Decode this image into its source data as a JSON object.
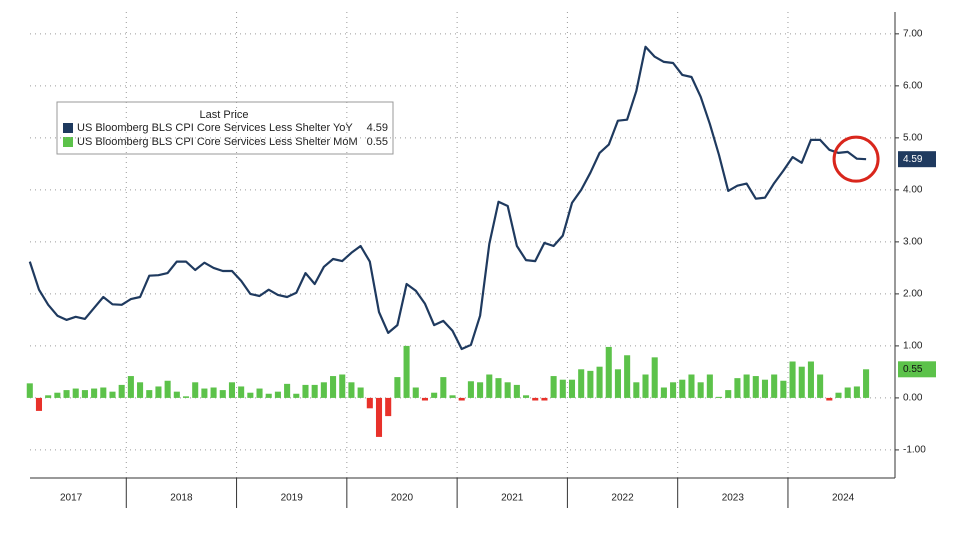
{
  "chart_data": {
    "type": "combo",
    "legend_title": "Last Price",
    "legend_position": "upper left",
    "categories": [
      null,
      null,
      null,
      null,
      null,
      null,
      "2017",
      null,
      null,
      null,
      null,
      null,
      null,
      null,
      null,
      null,
      null,
      null,
      "2018",
      null,
      null,
      null,
      null,
      null,
      null,
      null,
      null,
      null,
      null,
      null,
      "2019",
      null,
      null,
      null,
      null,
      null,
      null,
      null,
      null,
      null,
      null,
      null,
      "2020",
      null,
      null,
      null,
      null,
      null,
      null,
      null,
      null,
      null,
      null,
      null,
      "2021",
      null,
      null,
      null,
      null,
      null,
      null,
      null,
      null,
      null,
      null,
      null,
      "2022",
      null,
      null,
      null,
      null,
      null,
      null,
      null,
      null,
      null,
      null,
      null,
      "2023",
      null,
      null,
      null,
      null,
      null,
      null,
      null,
      null,
      null,
      null,
      null,
      "2024",
      null,
      null,
      null,
      null,
      null
    ],
    "series": [
      {
        "name": "US Bloomberg BLS CPI Core Services Less Shelter YoY",
        "type": "line",
        "color": "#1f3a5f",
        "values": [
          null,
          2.62,
          2.08,
          1.79,
          1.58,
          1.5,
          1.56,
          1.52,
          1.73,
          1.94,
          1.8,
          1.79,
          1.9,
          1.94,
          2.35,
          2.36,
          2.4,
          2.62,
          2.62,
          2.46,
          2.6,
          2.5,
          2.44,
          2.44,
          2.25,
          2.0,
          1.96,
          2.08,
          1.98,
          1.94,
          2.02,
          2.4,
          2.19,
          2.52,
          2.67,
          2.63,
          2.79,
          2.92,
          2.62,
          1.65,
          1.25,
          1.4,
          2.19,
          2.06,
          1.81,
          1.4,
          1.48,
          1.29,
          0.94,
          1.02,
          1.58,
          2.96,
          3.77,
          3.69,
          2.92,
          2.65,
          2.63,
          2.98,
          2.92,
          3.12,
          3.75,
          4.0,
          4.33,
          4.71,
          4.87,
          5.33,
          5.35,
          5.9,
          6.75,
          6.56,
          6.46,
          6.44,
          6.21,
          6.17,
          5.79,
          5.27,
          4.67,
          3.98,
          4.08,
          4.12,
          3.83,
          3.85,
          4.13,
          4.37,
          4.63,
          4.52,
          4.96,
          4.96,
          4.77,
          4.71,
          4.73,
          4.6,
          4.59,
          null,
          null,
          null
        ]
      },
      {
        "name": "US Bloomberg BLS CPI Core Services Less Shelter MoM",
        "type": "bar",
        "color": "#5cc24a",
        "negative_color": "#e8312a",
        "values": [
          null,
          0.28,
          -0.25,
          0.05,
          0.1,
          0.15,
          0.18,
          0.15,
          0.18,
          0.2,
          0.12,
          0.25,
          0.42,
          0.3,
          0.15,
          0.22,
          0.33,
          0.12,
          0.03,
          0.3,
          0.18,
          0.2,
          0.15,
          0.3,
          0.22,
          0.1,
          0.18,
          0.08,
          0.12,
          0.27,
          0.08,
          0.25,
          0.25,
          0.3,
          0.42,
          0.45,
          0.3,
          0.2,
          -0.2,
          -0.75,
          -0.35,
          0.4,
          1.0,
          0.2,
          -0.05,
          0.1,
          0.4,
          0.05,
          -0.05,
          0.32,
          0.3,
          0.45,
          0.38,
          0.3,
          0.25,
          0.05,
          -0.05,
          -0.05,
          0.42,
          0.35,
          0.35,
          0.55,
          0.52,
          0.6,
          0.98,
          0.55,
          0.82,
          0.3,
          0.45,
          0.78,
          0.2,
          0.3,
          0.35,
          0.45,
          0.3,
          0.45,
          0.02,
          0.15,
          0.38,
          0.45,
          0.42,
          0.35,
          0.45,
          0.33,
          0.7,
          0.6,
          0.7,
          0.45,
          -0.05,
          0.1,
          0.2,
          0.22,
          0.55,
          null,
          null,
          null
        ]
      }
    ],
    "ylim": [
      -1.54,
      7.42
    ],
    "yticks": [
      {
        "value": -1,
        "label": "-1.00"
      },
      {
        "value": 0,
        "label": "0.00"
      },
      {
        "value": 1,
        "label": "1.00"
      },
      {
        "value": 2,
        "label": "2.00"
      },
      {
        "value": 3,
        "label": "3.00"
      },
      {
        "value": 4,
        "label": "4.00"
      },
      {
        "value": 5,
        "label": "5.00"
      },
      {
        "value": 6,
        "label": "6.00"
      },
      {
        "value": 7,
        "label": "7.00"
      }
    ],
    "y_axis_side": "right",
    "grid": true
  }
}
